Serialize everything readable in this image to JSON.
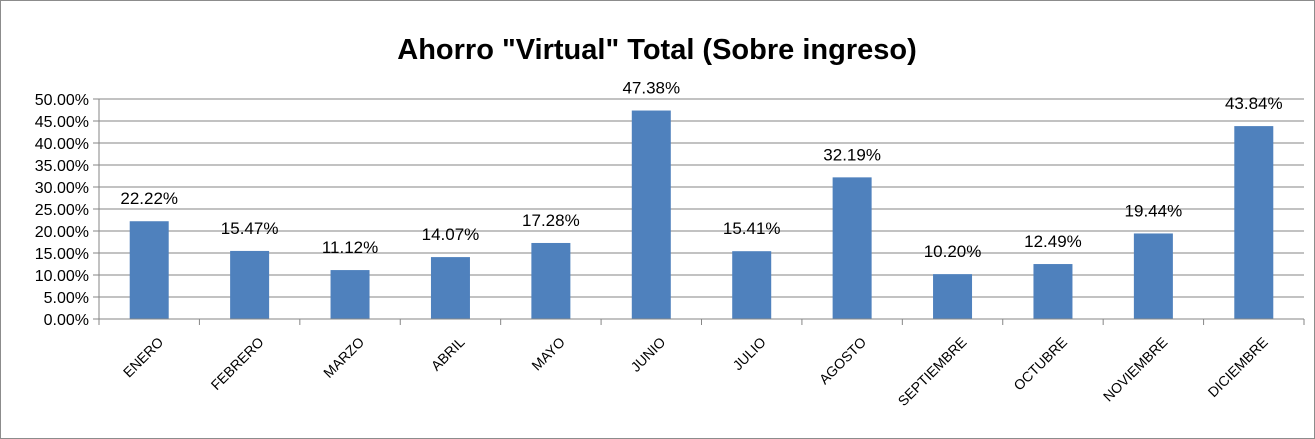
{
  "chart_data": {
    "type": "bar",
    "title": "Ahorro \"Virtual\" Total (Sobre ingreso)",
    "categories": [
      "ENERO",
      "FEBRERO",
      "MARZO",
      "ABRIL",
      "MAYO",
      "JUNIO",
      "JULIO",
      "AGOSTO",
      "SEPTIEMBRE",
      "OCTUBRE",
      "NOVIEMBRE",
      "DICIEMBRE"
    ],
    "values": [
      22.22,
      15.47,
      11.12,
      14.07,
      17.28,
      47.38,
      15.41,
      32.19,
      10.2,
      12.49,
      19.44,
      43.84
    ],
    "data_labels": [
      "22.22%",
      "15.47%",
      "11.12%",
      "14.07%",
      "17.28%",
      "47.38%",
      "15.41%",
      "32.19%",
      "10.20%",
      "12.49%",
      "19.44%",
      "43.84%"
    ],
    "yticks": [
      0,
      5,
      10,
      15,
      20,
      25,
      30,
      35,
      40,
      45,
      50
    ],
    "ytick_labels": [
      "0.00%",
      "5.00%",
      "10.00%",
      "15.00%",
      "20.00%",
      "25.00%",
      "30.00%",
      "35.00%",
      "40.00%",
      "45.00%",
      "50.00%"
    ],
    "ylim": [
      0,
      50
    ],
    "grid": true,
    "legend": "none",
    "colors": {
      "bar": "#4f81bd",
      "grid": "#868686",
      "axis": "#868686"
    }
  }
}
